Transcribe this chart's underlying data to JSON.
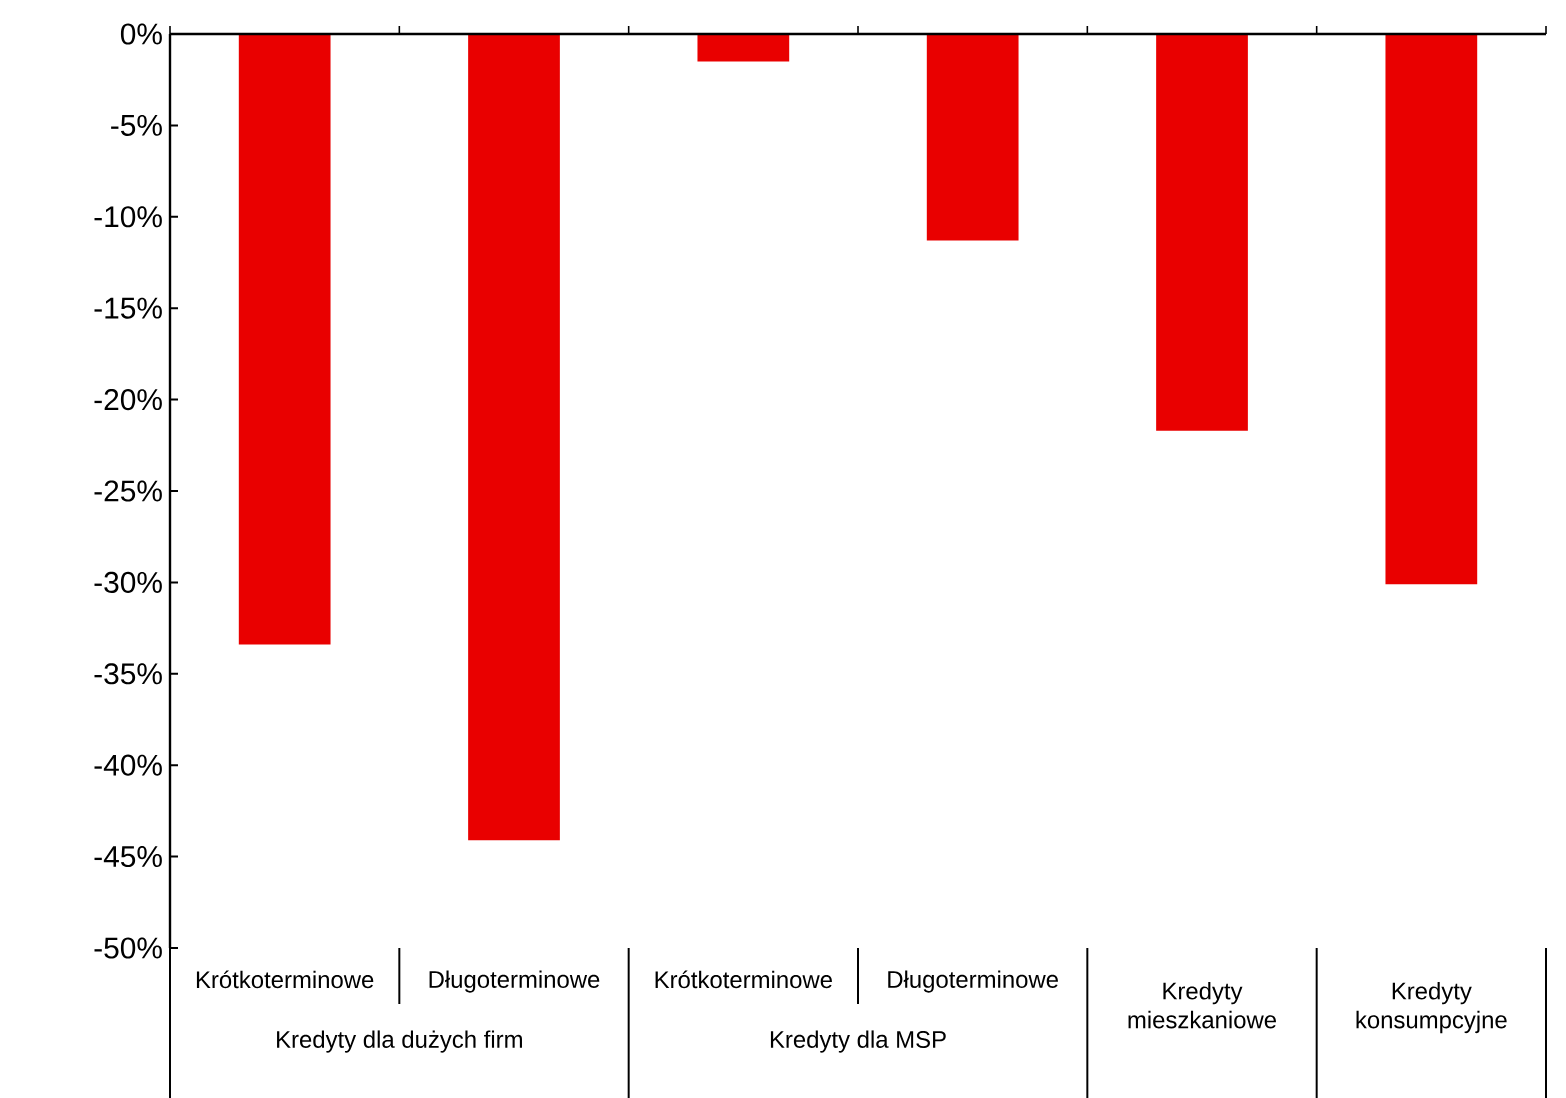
{
  "chart_data": {
    "type": "bar",
    "categories": [
      "Krótkoterminowe",
      "Długoterminowe",
      "Krótkoterminowe",
      "Długoterminowe",
      "Kredyty mieszkaniowe",
      "Kredyty konsumpcyjne"
    ],
    "values": [
      -33.4,
      -44.1,
      -1.5,
      -11.3,
      -21.7,
      -30.1
    ],
    "color": "#e90000",
    "ylim": [
      -50,
      0
    ],
    "yticks": [
      {
        "value": 0,
        "label": "0%"
      },
      {
        "value": -5,
        "label": "-5%"
      },
      {
        "value": -10,
        "label": "-10%"
      },
      {
        "value": -15,
        "label": "-15%"
      },
      {
        "value": -20,
        "label": "-20%"
      },
      {
        "value": -25,
        "label": "-25%"
      },
      {
        "value": -30,
        "label": "-30%"
      },
      {
        "value": -35,
        "label": "-35%"
      },
      {
        "value": -40,
        "label": "-40%"
      },
      {
        "value": -45,
        "label": "-45%"
      },
      {
        "value": -50,
        "label": "-50%"
      }
    ],
    "annotations": [
      "Kredyty dla dużych firm",
      "Kredyty dla MSP"
    ],
    "grid": false
  }
}
